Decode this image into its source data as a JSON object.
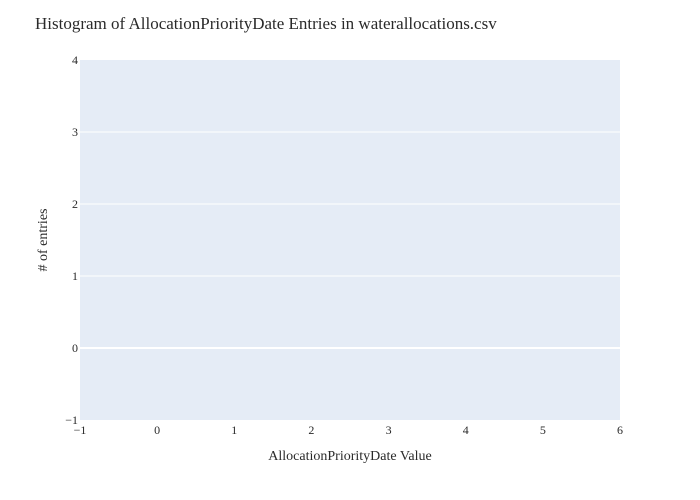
{
  "chart_data": {
    "type": "bar",
    "title": "Histogram of AllocationPriorityDate Entries in waterallocations.csv",
    "xlabel": "AllocationPriorityDate Value",
    "ylabel": "# of entries",
    "xlim": [
      -1,
      6
    ],
    "ylim": [
      -1,
      4
    ],
    "x_ticks": [
      -1,
      0,
      1,
      2,
      3,
      4,
      5,
      6
    ],
    "y_ticks": [
      -1,
      0,
      1,
      2,
      3,
      4
    ],
    "x_tick_labels": [
      "−1",
      "0",
      "1",
      "2",
      "3",
      "4",
      "5",
      "6"
    ],
    "y_tick_labels": [
      "−1",
      "0",
      "1",
      "2",
      "3",
      "4"
    ],
    "categories": [],
    "values": [],
    "grid": true,
    "legend": "none",
    "colors": {
      "plot_background": "#e5ecf6",
      "gridline": "#ffffff",
      "text": "#2a2a2a"
    }
  }
}
